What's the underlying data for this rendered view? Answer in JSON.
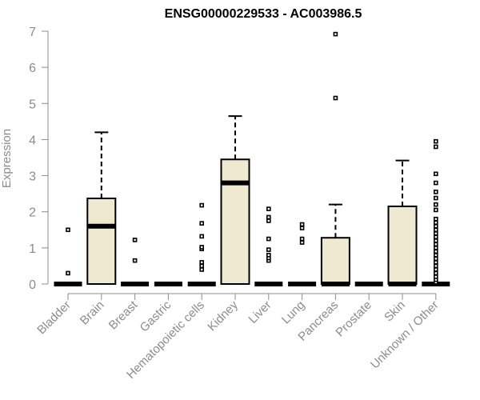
{
  "chart_data": {
    "type": "boxplot",
    "title": "ENSG00000229533 - AC003986.5",
    "ylabel": "Expression",
    "xlabel": "",
    "ylim": [
      0,
      7
    ],
    "yticks": [
      0,
      1,
      2,
      3,
      4,
      5,
      6,
      7
    ],
    "grid": false,
    "box_color": "#efe9d2",
    "categories": [
      "Bladder",
      "Brain",
      "Breast",
      "Gastric",
      "Hematopoietic cells",
      "Kidney",
      "Liver",
      "Lung",
      "Pancreas",
      "Prostate",
      "Skin",
      "Unknown / Other"
    ],
    "boxes": [
      {
        "category": "Bladder",
        "q1": 0,
        "median": 0,
        "q3": 0,
        "whisker_low": 0,
        "whisker_high": 0,
        "outliers": [
          0.3,
          1.5
        ]
      },
      {
        "category": "Brain",
        "q1": 0,
        "median": 1.6,
        "q3": 2.37,
        "whisker_low": 0,
        "whisker_high": 4.2,
        "outliers": []
      },
      {
        "category": "Breast",
        "q1": 0,
        "median": 0,
        "q3": 0,
        "whisker_low": 0,
        "whisker_high": 0,
        "outliers": [
          0.65,
          1.22
        ]
      },
      {
        "category": "Gastric",
        "q1": 0,
        "median": 0,
        "q3": 0,
        "whisker_low": 0,
        "whisker_high": 0,
        "outliers": []
      },
      {
        "category": "Hematopoietic cells",
        "q1": 0,
        "median": 0,
        "q3": 0,
        "whisker_low": 0,
        "whisker_high": 0,
        "outliers": [
          0.4,
          0.5,
          0.6,
          0.97,
          1.02,
          1.32,
          1.68,
          2.18
        ]
      },
      {
        "category": "Kidney",
        "q1": 0,
        "median": 2.8,
        "q3": 3.45,
        "whisker_low": 0,
        "whisker_high": 4.65,
        "outliers": []
      },
      {
        "category": "Liver",
        "q1": 0,
        "median": 0,
        "q3": 0,
        "whisker_low": 0,
        "whisker_high": 0,
        "outliers": [
          0.65,
          0.72,
          0.8,
          0.95,
          1.25,
          1.75,
          1.85,
          2.08
        ]
      },
      {
        "category": "Lung",
        "q1": 0,
        "median": 0,
        "q3": 0,
        "whisker_low": 0,
        "whisker_high": 0,
        "outliers": [
          1.15,
          1.25,
          1.55,
          1.65
        ]
      },
      {
        "category": "Pancreas",
        "q1": 0,
        "median": 0,
        "q3": 1.28,
        "whisker_low": 0,
        "whisker_high": 2.2,
        "outliers": [
          5.15,
          6.92
        ]
      },
      {
        "category": "Prostate",
        "q1": 0,
        "median": 0,
        "q3": 0,
        "whisker_low": 0,
        "whisker_high": 0,
        "outliers": []
      },
      {
        "category": "Skin",
        "q1": 0,
        "median": 0,
        "q3": 2.15,
        "whisker_low": 0,
        "whisker_high": 3.42,
        "outliers": []
      },
      {
        "category": "Unknown / Other",
        "q1": 0,
        "median": 0,
        "q3": 0,
        "whisker_low": 0,
        "whisker_high": 0,
        "outliers": [
          0.05,
          0.12,
          0.2,
          0.3,
          0.4,
          0.5,
          0.6,
          0.7,
          0.8,
          0.9,
          1.0,
          1.1,
          1.2,
          1.3,
          1.4,
          1.5,
          1.6,
          1.7,
          1.8,
          2.05,
          2.2,
          2.38,
          2.55,
          2.8,
          3.05,
          3.8,
          3.95
        ]
      }
    ]
  }
}
